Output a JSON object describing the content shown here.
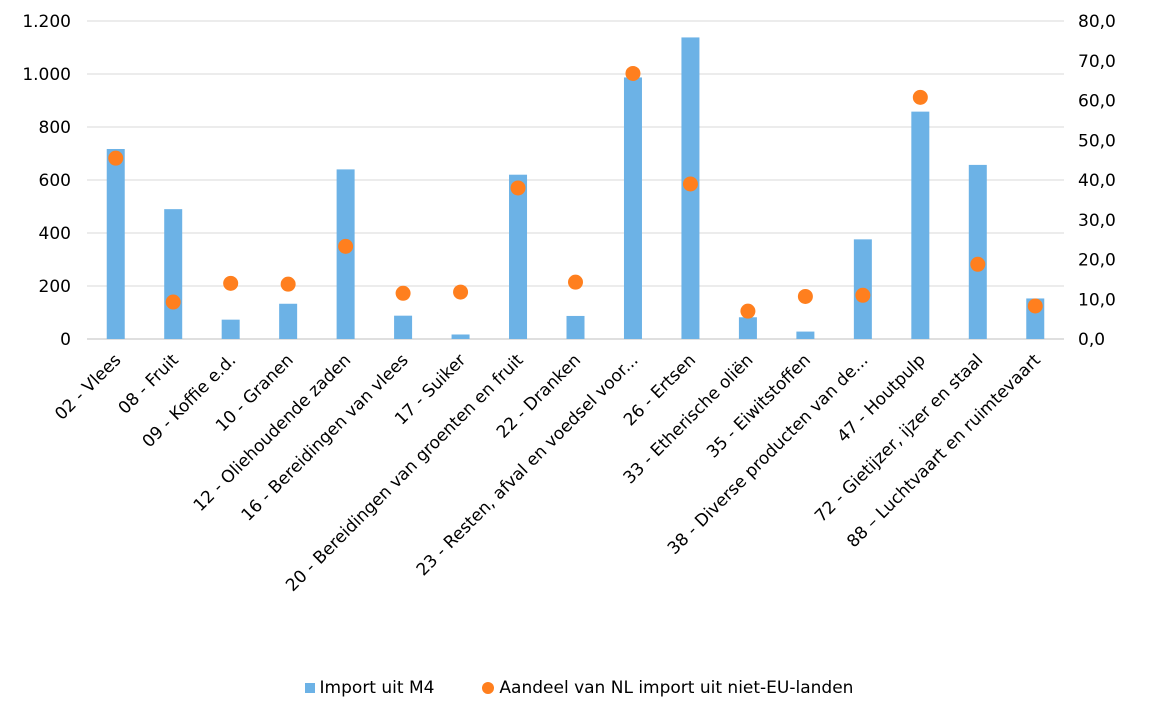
{
  "chart_data": {
    "type": "bar",
    "categories": [
      "02 - Vlees",
      "08 - Fruit",
      "09 - Koffie e.d.",
      "10 - Granen",
      "12 - Oliehoudende zaden",
      "16 - Bereidingen van vlees",
      "17 - Suiker",
      "20 - Bereidingen van groenten en fruit",
      "22 - Dranken",
      "23 - Resten, afval en voedsel voor...",
      "26 - Ertsen",
      "33 - Etherische oliën",
      "35 - Eiwitstoffen",
      "38 - Diverse producten van de...",
      "47 - Houtpulp",
      "72 - Gietijzer, ijzer en staal",
      "88 – Luchtvaart en ruimtevaart"
    ],
    "series": [
      {
        "name": "Import uit M4",
        "type": "bar",
        "axis": "left",
        "color": "#6cb2e6",
        "values": [
          717,
          490,
          73,
          133,
          640,
          88,
          17,
          620,
          87,
          987,
          1138,
          82,
          28,
          376,
          858,
          657,
          153
        ]
      },
      {
        "name": "Aandeel van NL import uit niet-EU-landen",
        "type": "scatter",
        "axis": "right",
        "color": "#ff7f1e",
        "values": [
          45.5,
          9.3,
          14.0,
          13.8,
          23.3,
          11.5,
          11.8,
          38.0,
          14.3,
          66.8,
          39.0,
          7.0,
          10.7,
          11.0,
          60.8,
          18.8,
          8.3
        ]
      }
    ],
    "y_left": {
      "ylim": [
        0,
        1200
      ],
      "ticks": [
        0,
        200,
        400,
        600,
        800,
        1000,
        1200
      ],
      "tick_labels": [
        "0",
        "200",
        "400",
        "600",
        "800",
        "1.000",
        "1.200"
      ]
    },
    "y_right": {
      "ylim": [
        0,
        80
      ],
      "ticks": [
        0,
        10,
        20,
        30,
        40,
        50,
        60,
        70,
        80
      ],
      "tick_labels": [
        "0,0",
        "10,0",
        "20,0",
        "30,0",
        "40,0",
        "50,0",
        "60,0",
        "70,0",
        "80,0"
      ]
    },
    "grid": true,
    "legend_position": "bottom"
  },
  "legend": {
    "bar_label": "Import uit M4",
    "dot_label": "Aandeel van NL import uit niet-EU-landen"
  }
}
